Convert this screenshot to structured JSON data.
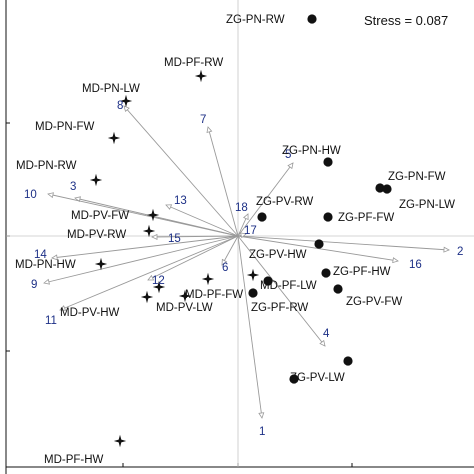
{
  "chart_data": {
    "type": "scatter",
    "title": "",
    "xlabel": "",
    "ylabel": "",
    "xlim": [
      0,
      474
    ],
    "ylim": [
      474,
      0
    ],
    "stress_label": "Stress = 0.087",
    "colors": {
      "axis": "#111111",
      "vector": "#9a9a9a",
      "vector_label": "#1c2f86",
      "zg_marker": "#111111",
      "md_marker": "#111111"
    },
    "points": [
      {
        "id": "zg-pn-rw",
        "label": "ZG-PN-RW",
        "group": "ZG",
        "x": 312,
        "y": 19
      },
      {
        "id": "zg-pn-hw",
        "label": "ZG-PN-HW",
        "group": "ZG",
        "x": 328,
        "y": 162
      },
      {
        "id": "zg-pn-fw",
        "label": "ZG-PN-FW",
        "group": "ZG",
        "x": 380,
        "y": 188
      },
      {
        "id": "zg-pn-lw",
        "label": "ZG-PN-LW",
        "group": "ZG",
        "x": 387,
        "y": 189
      },
      {
        "id": "zg-pv-rw",
        "label": "ZG-PV-RW",
        "group": "ZG",
        "x": 262,
        "y": 217
      },
      {
        "id": "zg-pf-fw",
        "label": "ZG-PF-FW",
        "group": "ZG",
        "x": 328,
        "y": 217
      },
      {
        "id": "zg-pv-hw",
        "label": "ZG-PV-HW",
        "group": "ZG",
        "x": 319,
        "y": 244
      },
      {
        "id": "zg-pf-hw",
        "label": "ZG-PF-HW",
        "group": "ZG",
        "x": 326,
        "y": 273
      },
      {
        "id": "md-pf-lw",
        "label": "MD-PF-LW",
        "group": "ZG",
        "x": 268,
        "y": 281
      },
      {
        "id": "zg-pv-fw",
        "label": "ZG-PV-FW",
        "group": "ZG",
        "x": 338,
        "y": 289
      },
      {
        "id": "zg-pf-rw",
        "label": "ZG-PF-RW",
        "group": "ZG",
        "x": 253,
        "y": 293
      },
      {
        "id": "zg-pv-lw-a",
        "label": "",
        "group": "ZG",
        "x": 348,
        "y": 361
      },
      {
        "id": "zg-pv-lw",
        "label": "ZG-PV-LW",
        "group": "ZG",
        "x": 294,
        "y": 379
      },
      {
        "id": "md-pf-rw",
        "label": "MD-PF-RW",
        "group": "MD",
        "x": 201,
        "y": 76
      },
      {
        "id": "md-pn-lw",
        "label": "MD-PN-LW",
        "group": "MD",
        "x": 126,
        "y": 101
      },
      {
        "id": "md-pn-fw",
        "label": "MD-PN-FW",
        "group": "MD",
        "x": 114,
        "y": 138
      },
      {
        "id": "md-pn-rw",
        "label": "MD-PN-RW",
        "group": "MD",
        "x": 96,
        "y": 180
      },
      {
        "id": "md-pv-fw",
        "label": "MD-PV-FW",
        "group": "MD",
        "x": 153,
        "y": 215
      },
      {
        "id": "md-pv-rw",
        "label": "MD-PV-RW",
        "group": "MD",
        "x": 149,
        "y": 231
      },
      {
        "id": "md-pn-hw",
        "label": "MD-PN-HW",
        "group": "MD",
        "x": 101,
        "y": 264
      },
      {
        "id": "md-pv-hw",
        "label": "MD-PV-HW",
        "group": "MD",
        "x": 147,
        "y": 297
      },
      {
        "id": "md-pv-lw",
        "label": "MD-PV-LW",
        "group": "MD",
        "x": 159,
        "y": 287
      },
      {
        "id": "md-pf-fw",
        "label": "MD-PF-FW",
        "group": "MD",
        "x": 208,
        "y": 279
      },
      {
        "id": "md-pf-fw-b",
        "label": "",
        "group": "MD",
        "x": 185,
        "y": 296
      },
      {
        "id": "md-pf-lw-star",
        "label": "",
        "group": "MD",
        "x": 253,
        "y": 275
      },
      {
        "id": "md-pf-hw",
        "label": "MD-PF-HW",
        "group": "MD",
        "x": 120,
        "y": 441
      }
    ],
    "vectors": [
      {
        "label": "1",
        "x": 262,
        "y": 418
      },
      {
        "label": "2",
        "x": 449,
        "y": 250
      },
      {
        "label": "3",
        "x": 75,
        "y": 198
      },
      {
        "label": "4",
        "x": 325,
        "y": 346
      },
      {
        "label": "5",
        "x": 293,
        "y": 163
      },
      {
        "label": "6",
        "x": 222,
        "y": 265
      },
      {
        "label": "7",
        "x": 208,
        "y": 127
      },
      {
        "label": "8",
        "x": 124,
        "y": 106
      },
      {
        "label": "9",
        "x": 44,
        "y": 283
      },
      {
        "label": "10",
        "x": 48,
        "y": 194
      },
      {
        "label": "11",
        "x": 60,
        "y": 310
      },
      {
        "label": "12",
        "x": 148,
        "y": 280
      },
      {
        "label": "13",
        "x": 166,
        "y": 205
      },
      {
        "label": "14",
        "x": 52,
        "y": 258
      },
      {
        "label": "15",
        "x": 152,
        "y": 237
      },
      {
        "label": "16",
        "x": 398,
        "y": 261
      },
      {
        "label": "17",
        "x": 246,
        "y": 234
      },
      {
        "label": "18",
        "x": 248,
        "y": 214
      }
    ]
  }
}
